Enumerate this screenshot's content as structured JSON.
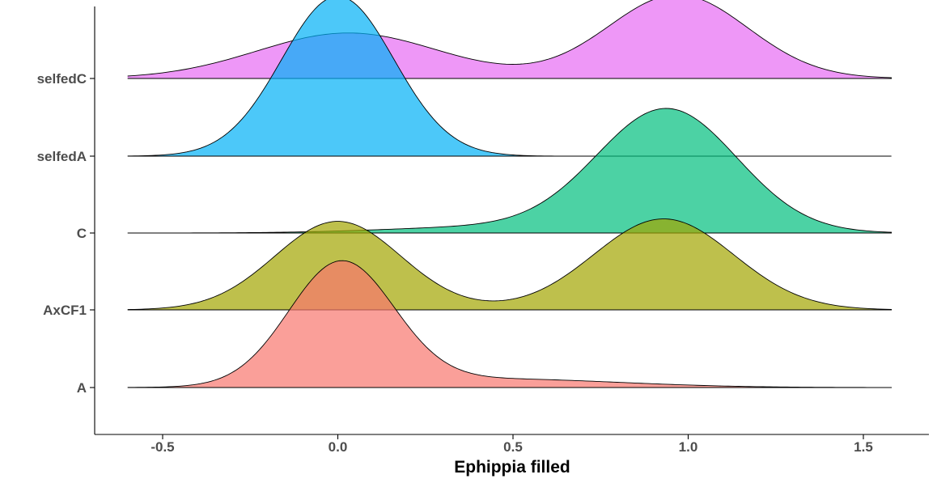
{
  "chart_data": {
    "type": "ridgeline",
    "title": "",
    "xlabel": "Ephippia filled",
    "ylabel": "",
    "xlim": [
      -0.6,
      1.58
    ],
    "xticks": [
      -0.5,
      0.0,
      0.5,
      1.0,
      1.5
    ],
    "xtick_labels": [
      "-0.5",
      "0.0",
      "0.5",
      "1.0",
      "1.5"
    ],
    "grid": false,
    "legend": "none",
    "series": [
      {
        "name": "A",
        "color": "#F8766D",
        "components": [
          {
            "mu": 0.01,
            "sd": 0.15,
            "amp": 1.0
          },
          {
            "mu": 0.45,
            "sd": 0.35,
            "amp": 0.07
          }
        ]
      },
      {
        "name": "AxCF1",
        "color": "#A3A500",
        "components": [
          {
            "mu": 0.0,
            "sd": 0.18,
            "amp": 0.72
          },
          {
            "mu": 0.93,
            "sd": 0.2,
            "amp": 0.74
          }
        ]
      },
      {
        "name": "C",
        "color": "#00BF7D",
        "components": [
          {
            "mu": 0.94,
            "sd": 0.2,
            "amp": 1.0
          },
          {
            "mu": 0.45,
            "sd": 0.3,
            "amp": 0.05
          }
        ]
      },
      {
        "name": "selfedA",
        "color": "#00B0F6",
        "components": [
          {
            "mu": 0.0,
            "sd": 0.16,
            "amp": 1.3
          }
        ]
      },
      {
        "name": "selfedC",
        "color": "#E76BF3",
        "components": [
          {
            "mu": 0.03,
            "sd": 0.26,
            "amp": 0.37
          },
          {
            "mu": 0.97,
            "sd": 0.2,
            "amp": 0.68
          }
        ]
      }
    ]
  }
}
